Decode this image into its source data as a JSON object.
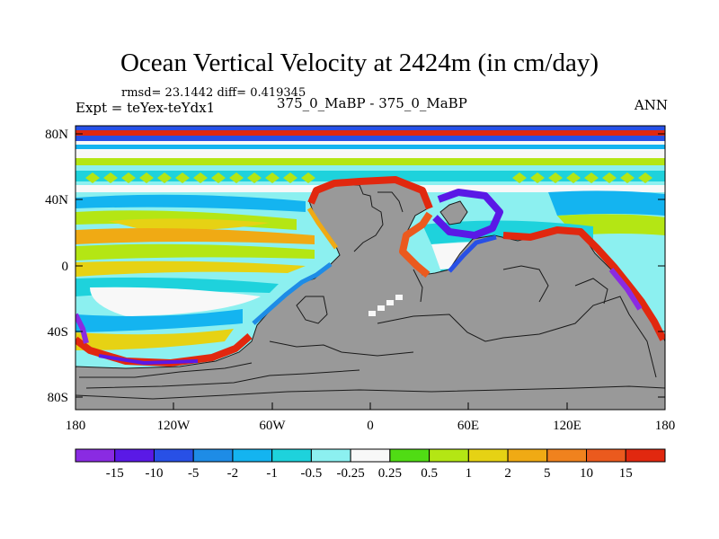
{
  "title": "Ocean Vertical Velocity at 2424m (in cm/day)",
  "stats": "rmsd= 23.1442 diff= 0.419345",
  "experiment": "Expt = teYex-teYdx1",
  "comparison": "375_0_MaBP - 375_0_MaBP",
  "season": "ANN",
  "lat_ticks": [
    "80N",
    "40N",
    "0",
    "40S",
    "80S"
  ],
  "lon_ticks": [
    "180",
    "120W",
    "60W",
    "0",
    "60E",
    "120E",
    "180"
  ],
  "colorbar": {
    "labels": [
      "-15",
      "-10",
      "-5",
      "-2",
      "-1",
      "-0.5",
      "-0.25",
      "0.25",
      "0.5",
      "1",
      "2",
      "5",
      "10",
      "15"
    ],
    "colors": [
      "#8a2be2",
      "#5a19e6",
      "#2850e6",
      "#1e8ce6",
      "#14b4f0",
      "#1ed2dc",
      "#8cf0f0",
      "#f8f8f8",
      "#50dc14",
      "#b4e614",
      "#e6d214",
      "#f0aa14",
      "#f0821e",
      "#eb5a1e",
      "#e1280f"
    ]
  },
  "land_color": "#999999"
}
